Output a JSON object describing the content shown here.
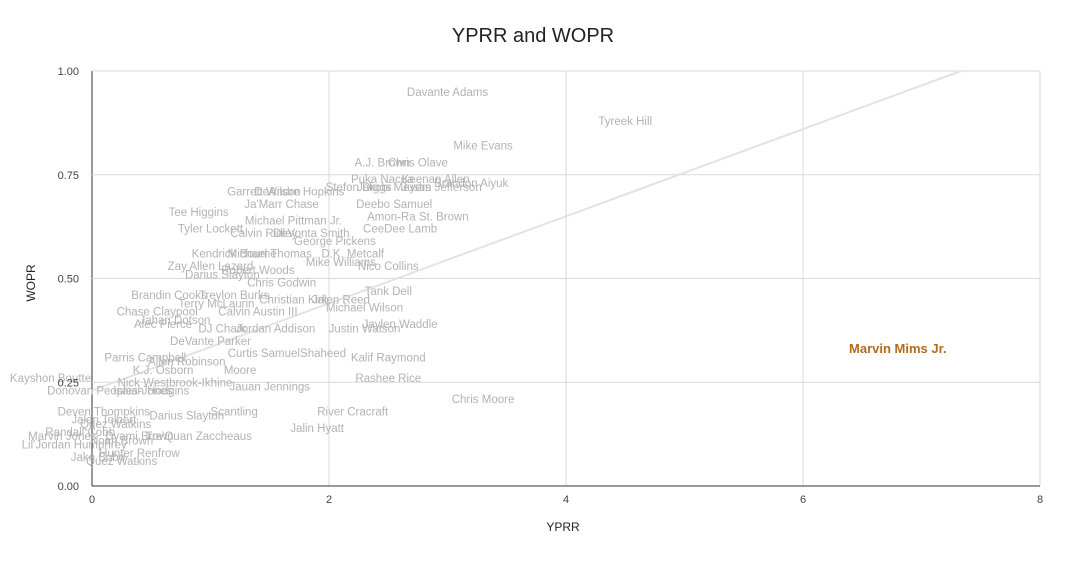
{
  "chart_data": {
    "type": "scatter",
    "title": "YPRR and WOPR",
    "xlabel": "YPRR",
    "ylabel": "WOPR",
    "xlim": [
      0,
      8
    ],
    "ylim": [
      0,
      1
    ],
    "x_ticks": [
      "0",
      "2",
      "4",
      "6",
      "8"
    ],
    "y_ticks": [
      "0.00",
      "0.25",
      "0.50",
      "0.75",
      "1.00"
    ],
    "grid": true,
    "trendline": {
      "x1": 0,
      "y1": 0.23,
      "x2": 8,
      "y2": 1.07
    },
    "highlight_color": "#b46a1a",
    "label_color": "#b3b3b3",
    "points": [
      {
        "label": "Davante Adams",
        "x": 3.0,
        "y": 0.95
      },
      {
        "label": "Tyreek Hill",
        "x": 4.5,
        "y": 0.88
      },
      {
        "label": "Mike Evans",
        "x": 3.3,
        "y": 0.82
      },
      {
        "label": "A.J. Brown",
        "x": 2.45,
        "y": 0.78
      },
      {
        "label": "Chris Olave",
        "x": 2.75,
        "y": 0.78
      },
      {
        "label": "Puka Nacua",
        "x": 2.45,
        "y": 0.74
      },
      {
        "label": "Keenan Allen",
        "x": 2.9,
        "y": 0.74
      },
      {
        "label": "Stefon Diggs",
        "x": 2.25,
        "y": 0.72
      },
      {
        "label": "Jakobi Meyers",
        "x": 2.55,
        "y": 0.72
      },
      {
        "label": "Justin Jefferson",
        "x": 2.95,
        "y": 0.72
      },
      {
        "label": "Brandon Aiyuk",
        "x": 3.2,
        "y": 0.73
      },
      {
        "label": "Garrett Wilson",
        "x": 1.45,
        "y": 0.71
      },
      {
        "label": "DeAndre Hopkins",
        "x": 1.75,
        "y": 0.71
      },
      {
        "label": "Ja'Marr Chase",
        "x": 1.6,
        "y": 0.68
      },
      {
        "label": "Deebo Samuel",
        "x": 2.55,
        "y": 0.68
      },
      {
        "label": "Amon-Ra St. Brown",
        "x": 2.75,
        "y": 0.65
      },
      {
        "label": "Tee Higgins",
        "x": 0.9,
        "y": 0.66
      },
      {
        "label": "Michael Pittman Jr.",
        "x": 1.7,
        "y": 0.64
      },
      {
        "label": "Tyler Lockett",
        "x": 1.0,
        "y": 0.62
      },
      {
        "label": "Calvin Ridley",
        "x": 1.45,
        "y": 0.61
      },
      {
        "label": "DeVonta Smith",
        "x": 1.85,
        "y": 0.61
      },
      {
        "label": "CeeDee Lamb",
        "x": 2.6,
        "y": 0.62
      },
      {
        "label": "George Pickens",
        "x": 2.05,
        "y": 0.59
      },
      {
        "label": "Michael Thomas",
        "x": 1.5,
        "y": 0.56
      },
      {
        "label": "Kendrick Bourne",
        "x": 1.2,
        "y": 0.56
      },
      {
        "label": "D.K. Metcalf",
        "x": 2.2,
        "y": 0.56
      },
      {
        "label": "Mike Williams",
        "x": 2.1,
        "y": 0.54
      },
      {
        "label": "Nico Collins",
        "x": 2.5,
        "y": 0.53
      },
      {
        "label": "Zay Allen Lazard",
        "x": 1.0,
        "y": 0.53
      },
      {
        "label": "Robert Woods",
        "x": 1.4,
        "y": 0.52
      },
      {
        "label": "Darius Slayton",
        "x": 1.1,
        "y": 0.51
      },
      {
        "label": "Chris Godwin",
        "x": 1.6,
        "y": 0.49
      },
      {
        "label": "Tank Dell",
        "x": 2.5,
        "y": 0.47
      },
      {
        "label": "Brandin Cooks",
        "x": 0.65,
        "y": 0.46
      },
      {
        "label": "Treylon Burks",
        "x": 1.2,
        "y": 0.46
      },
      {
        "label": "Christian Kirk",
        "x": 1.7,
        "y": 0.45
      },
      {
        "label": "Jalen Reed",
        "x": 2.1,
        "y": 0.45
      },
      {
        "label": "Michael Wilson",
        "x": 2.3,
        "y": 0.43
      },
      {
        "label": "Terry McLaurin",
        "x": 1.05,
        "y": 0.44
      },
      {
        "label": "Chase Claypool",
        "x": 0.55,
        "y": 0.42
      },
      {
        "label": "Calvin Austin III",
        "x": 1.4,
        "y": 0.42
      },
      {
        "label": "Jahan Dotson",
        "x": 0.7,
        "y": 0.4
      },
      {
        "label": "Alec Pierce",
        "x": 0.6,
        "y": 0.39
      },
      {
        "label": "DJ Chark",
        "x": 1.1,
        "y": 0.38
      },
      {
        "label": "Jordan Addison",
        "x": 1.55,
        "y": 0.38
      },
      {
        "label": "Justin Watson",
        "x": 2.3,
        "y": 0.38
      },
      {
        "label": "Jaylen Waddle",
        "x": 2.6,
        "y": 0.39
      },
      {
        "label": "DeVante Parker",
        "x": 1.0,
        "y": 0.35
      },
      {
        "label": "Curtis Samuel",
        "x": 1.45,
        "y": 0.32
      },
      {
        "label": "Shaheed",
        "x": 1.95,
        "y": 0.32
      },
      {
        "label": "Parris Campbell",
        "x": 0.45,
        "y": 0.31
      },
      {
        "label": "Allen Robinson",
        "x": 0.8,
        "y": 0.3
      },
      {
        "label": "Kalif Raymond",
        "x": 2.5,
        "y": 0.31
      },
      {
        "label": "K.J. Osborn",
        "x": 0.6,
        "y": 0.28
      },
      {
        "label": "Moore",
        "x": 1.25,
        "y": 0.28
      },
      {
        "label": "Kayshon Boutte",
        "x": -0.35,
        "y": 0.26
      },
      {
        "label": "Nick Westbrook-Ikhine",
        "x": 0.7,
        "y": 0.25
      },
      {
        "label": "Rashee Rice",
        "x": 2.5,
        "y": 0.26
      },
      {
        "label": "Marvin Mims Jr.",
        "x": 6.8,
        "y": 0.33,
        "highlight": true
      },
      {
        "label": "Donovan Peoples-Jones",
        "x": 0.15,
        "y": 0.23
      },
      {
        "label": "Isaiah Hodgins",
        "x": 0.5,
        "y": 0.23
      },
      {
        "label": "Jauan Jennings",
        "x": 1.5,
        "y": 0.24
      },
      {
        "label": "Chris Moore",
        "x": 3.3,
        "y": 0.21
      },
      {
        "label": "Deven Thompkins",
        "x": 0.1,
        "y": 0.18
      },
      {
        "label": "Scantling",
        "x": 1.2,
        "y": 0.18
      },
      {
        "label": "River Cracraft",
        "x": 2.2,
        "y": 0.18
      },
      {
        "label": "Jalen Tolbert",
        "x": 0.1,
        "y": 0.16
      },
      {
        "label": "Darius Slayton",
        "x": 0.8,
        "y": 0.17
      },
      {
        "label": "Quez Watkins",
        "x": 0.2,
        "y": 0.15
      },
      {
        "label": "Jalin Hyatt",
        "x": 1.9,
        "y": 0.14
      },
      {
        "label": "Randall Cobb",
        "x": -0.1,
        "y": 0.13
      },
      {
        "label": "Marvin Jones",
        "x": -0.25,
        "y": 0.12
      },
      {
        "label": "Noah Brown",
        "x": 0.25,
        "y": 0.11
      },
      {
        "label": "Dyami Brown",
        "x": 0.4,
        "y": 0.12
      },
      {
        "label": "Tre'Quan Zaccheaus",
        "x": 0.9,
        "y": 0.12
      },
      {
        "label": "Lil'Jordan Humphrey",
        "x": -0.15,
        "y": 0.1
      },
      {
        "label": "Hunter Renfrow",
        "x": 0.4,
        "y": 0.08
      },
      {
        "label": "Jake Bobo",
        "x": 0.05,
        "y": 0.07
      },
      {
        "label": "Quez Watkins",
        "x": 0.25,
        "y": 0.06
      }
    ]
  }
}
